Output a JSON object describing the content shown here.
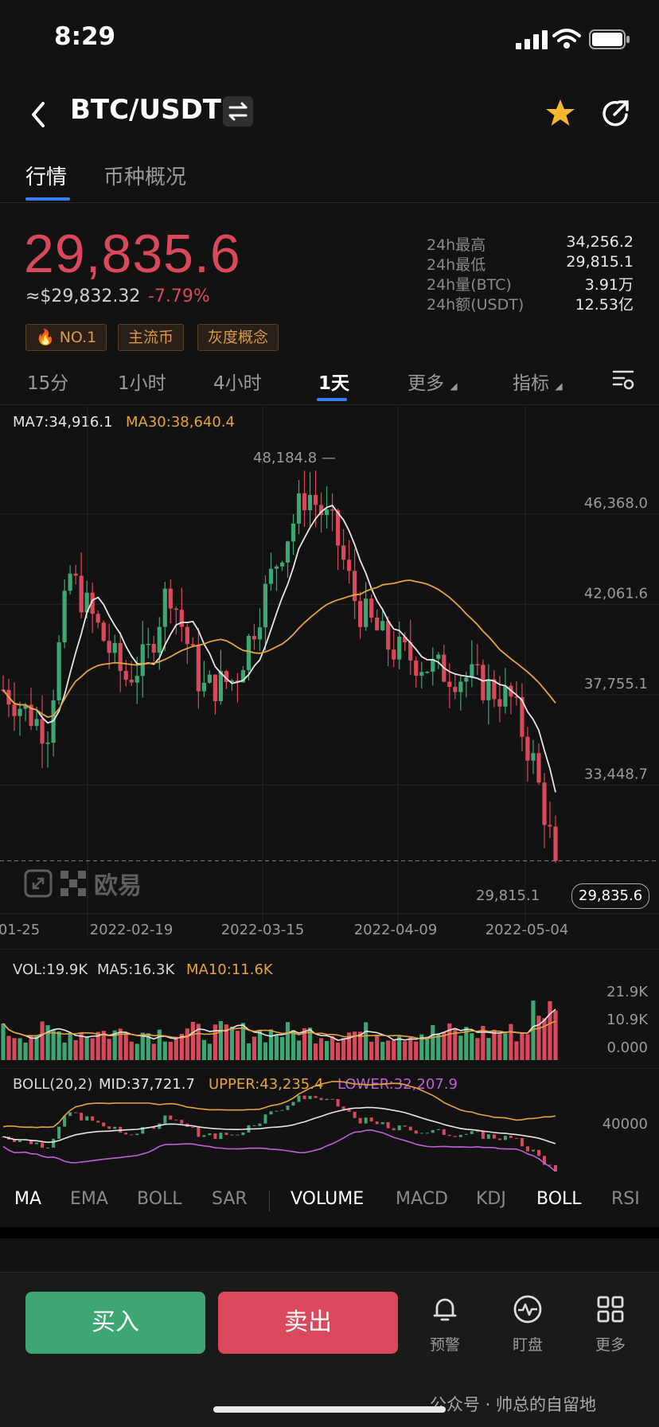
{
  "status": {
    "time": "8:29"
  },
  "nav": {
    "pair": "BTC/USDT"
  },
  "tabs": [
    "行情",
    "币种概况"
  ],
  "price": {
    "last": "29,835.6",
    "usd": "≈$29,832.32",
    "change": "-7.79%",
    "tags": [
      "NO.1",
      "主流币",
      "灰度概念"
    ]
  },
  "stats": [
    {
      "label": "24h最高",
      "value": "34,256.2"
    },
    {
      "label": "24h最低",
      "value": "29,815.1"
    },
    {
      "label": "24h量(BTC)",
      "value": "3.91万"
    },
    {
      "label": "24h额(USDT)",
      "value": "12.53亿"
    }
  ],
  "timeframes": [
    "15分",
    "1小时",
    "4小时",
    "1天",
    "更多",
    "指标"
  ],
  "chart_data": {
    "type": "candlestick",
    "legend": {
      "ma7": "MA7:34,916.1",
      "ma30": "MA30:38,640.4"
    },
    "high_marker": "48,184.8",
    "low_marker": "29,815.1",
    "last_price_tag": "29,835.6",
    "y_ticks": [
      "46,368.0",
      "42,061.6",
      "37,755.1",
      "33,448.7"
    ],
    "y_tick_values": [
      46368.0,
      42061.6,
      37755.1,
      33448.7
    ],
    "ylim": [
      28000,
      50000
    ],
    "x_ticks": [
      "01-25",
      "2022-02-19",
      "2022-03-15",
      "2022-04-09",
      "2022-05-04"
    ],
    "watermark": "欧易",
    "volume": {
      "legend": {
        "vol": "VOL:19.9K",
        "ma5": "MA5:16.3K",
        "ma10": "MA10:11.6K"
      },
      "y_ticks": [
        "21.9K",
        "10.9K",
        "0.000"
      ]
    },
    "boll": {
      "legend": {
        "name": "BOLL(20,2)",
        "mid": "MID:37,721.7",
        "upper": "UPPER:43,235.4",
        "lower": "LOWER:32,207.9"
      },
      "y_tick": "40000"
    },
    "colors": {
      "up": "#3ea673",
      "down": "#d9495b",
      "ma7": "#e6e6e6",
      "ma30": "#e6a23c",
      "lower": "#c05fd6"
    }
  },
  "indicator_tabs": [
    "MA",
    "EMA",
    "BOLL",
    "SAR",
    "VOLUME",
    "MACD",
    "KDJ",
    "BOLL",
    "RSI"
  ],
  "actions": {
    "buy": "买入",
    "sell": "卖出",
    "alert": "预警",
    "watch": "盯盘",
    "more": "更多"
  },
  "footer_watermark": "公众号 · 帅总的自留地"
}
